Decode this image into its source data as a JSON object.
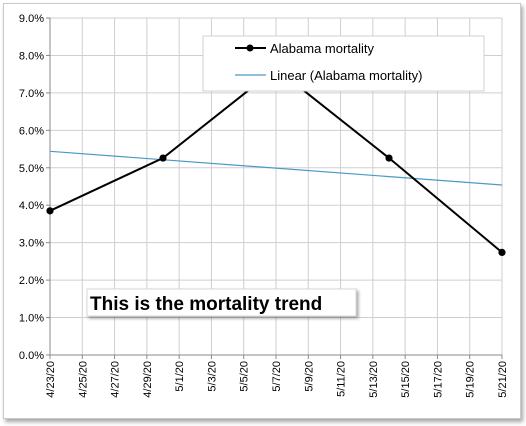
{
  "chart_data": {
    "type": "line",
    "title": "",
    "xlabel": "",
    "ylabel": "",
    "x_tick_labels": [
      "4/23/20",
      "4/25/20",
      "4/27/20",
      "4/29/20",
      "5/1/20",
      "5/3/20",
      "5/5/20",
      "5/7/20",
      "5/9/20",
      "5/11/20",
      "5/13/20",
      "5/15/20",
      "5/17/20",
      "5/19/20",
      "5/21/20"
    ],
    "y_tick_labels": [
      "0.0%",
      "1.0%",
      "2.0%",
      "3.0%",
      "4.0%",
      "5.0%",
      "6.0%",
      "7.0%",
      "8.0%",
      "9.0%"
    ],
    "ylim": [
      0,
      9
    ],
    "grid": true,
    "legend_placement": "top-right",
    "series": [
      {
        "name": "Alabama mortality",
        "color": "#000000",
        "marker": "circle",
        "points": [
          {
            "x": "4/23/20",
            "y": 3.85
          },
          {
            "x": "4/30/20",
            "y": 5.26
          },
          {
            "x": "5/7/20",
            "y": 7.65
          },
          {
            "x": "5/14/20",
            "y": 5.26
          },
          {
            "x": "5/21/20",
            "y": 2.74
          }
        ]
      },
      {
        "name": "Linear (Alabama mortality)",
        "color": "#4a9bc4",
        "trendline": true,
        "points": [
          {
            "x": "4/23/20",
            "y": 5.44
          },
          {
            "x": "5/21/20",
            "y": 4.54
          }
        ]
      }
    ],
    "annotation": "This is the mortality trend"
  }
}
